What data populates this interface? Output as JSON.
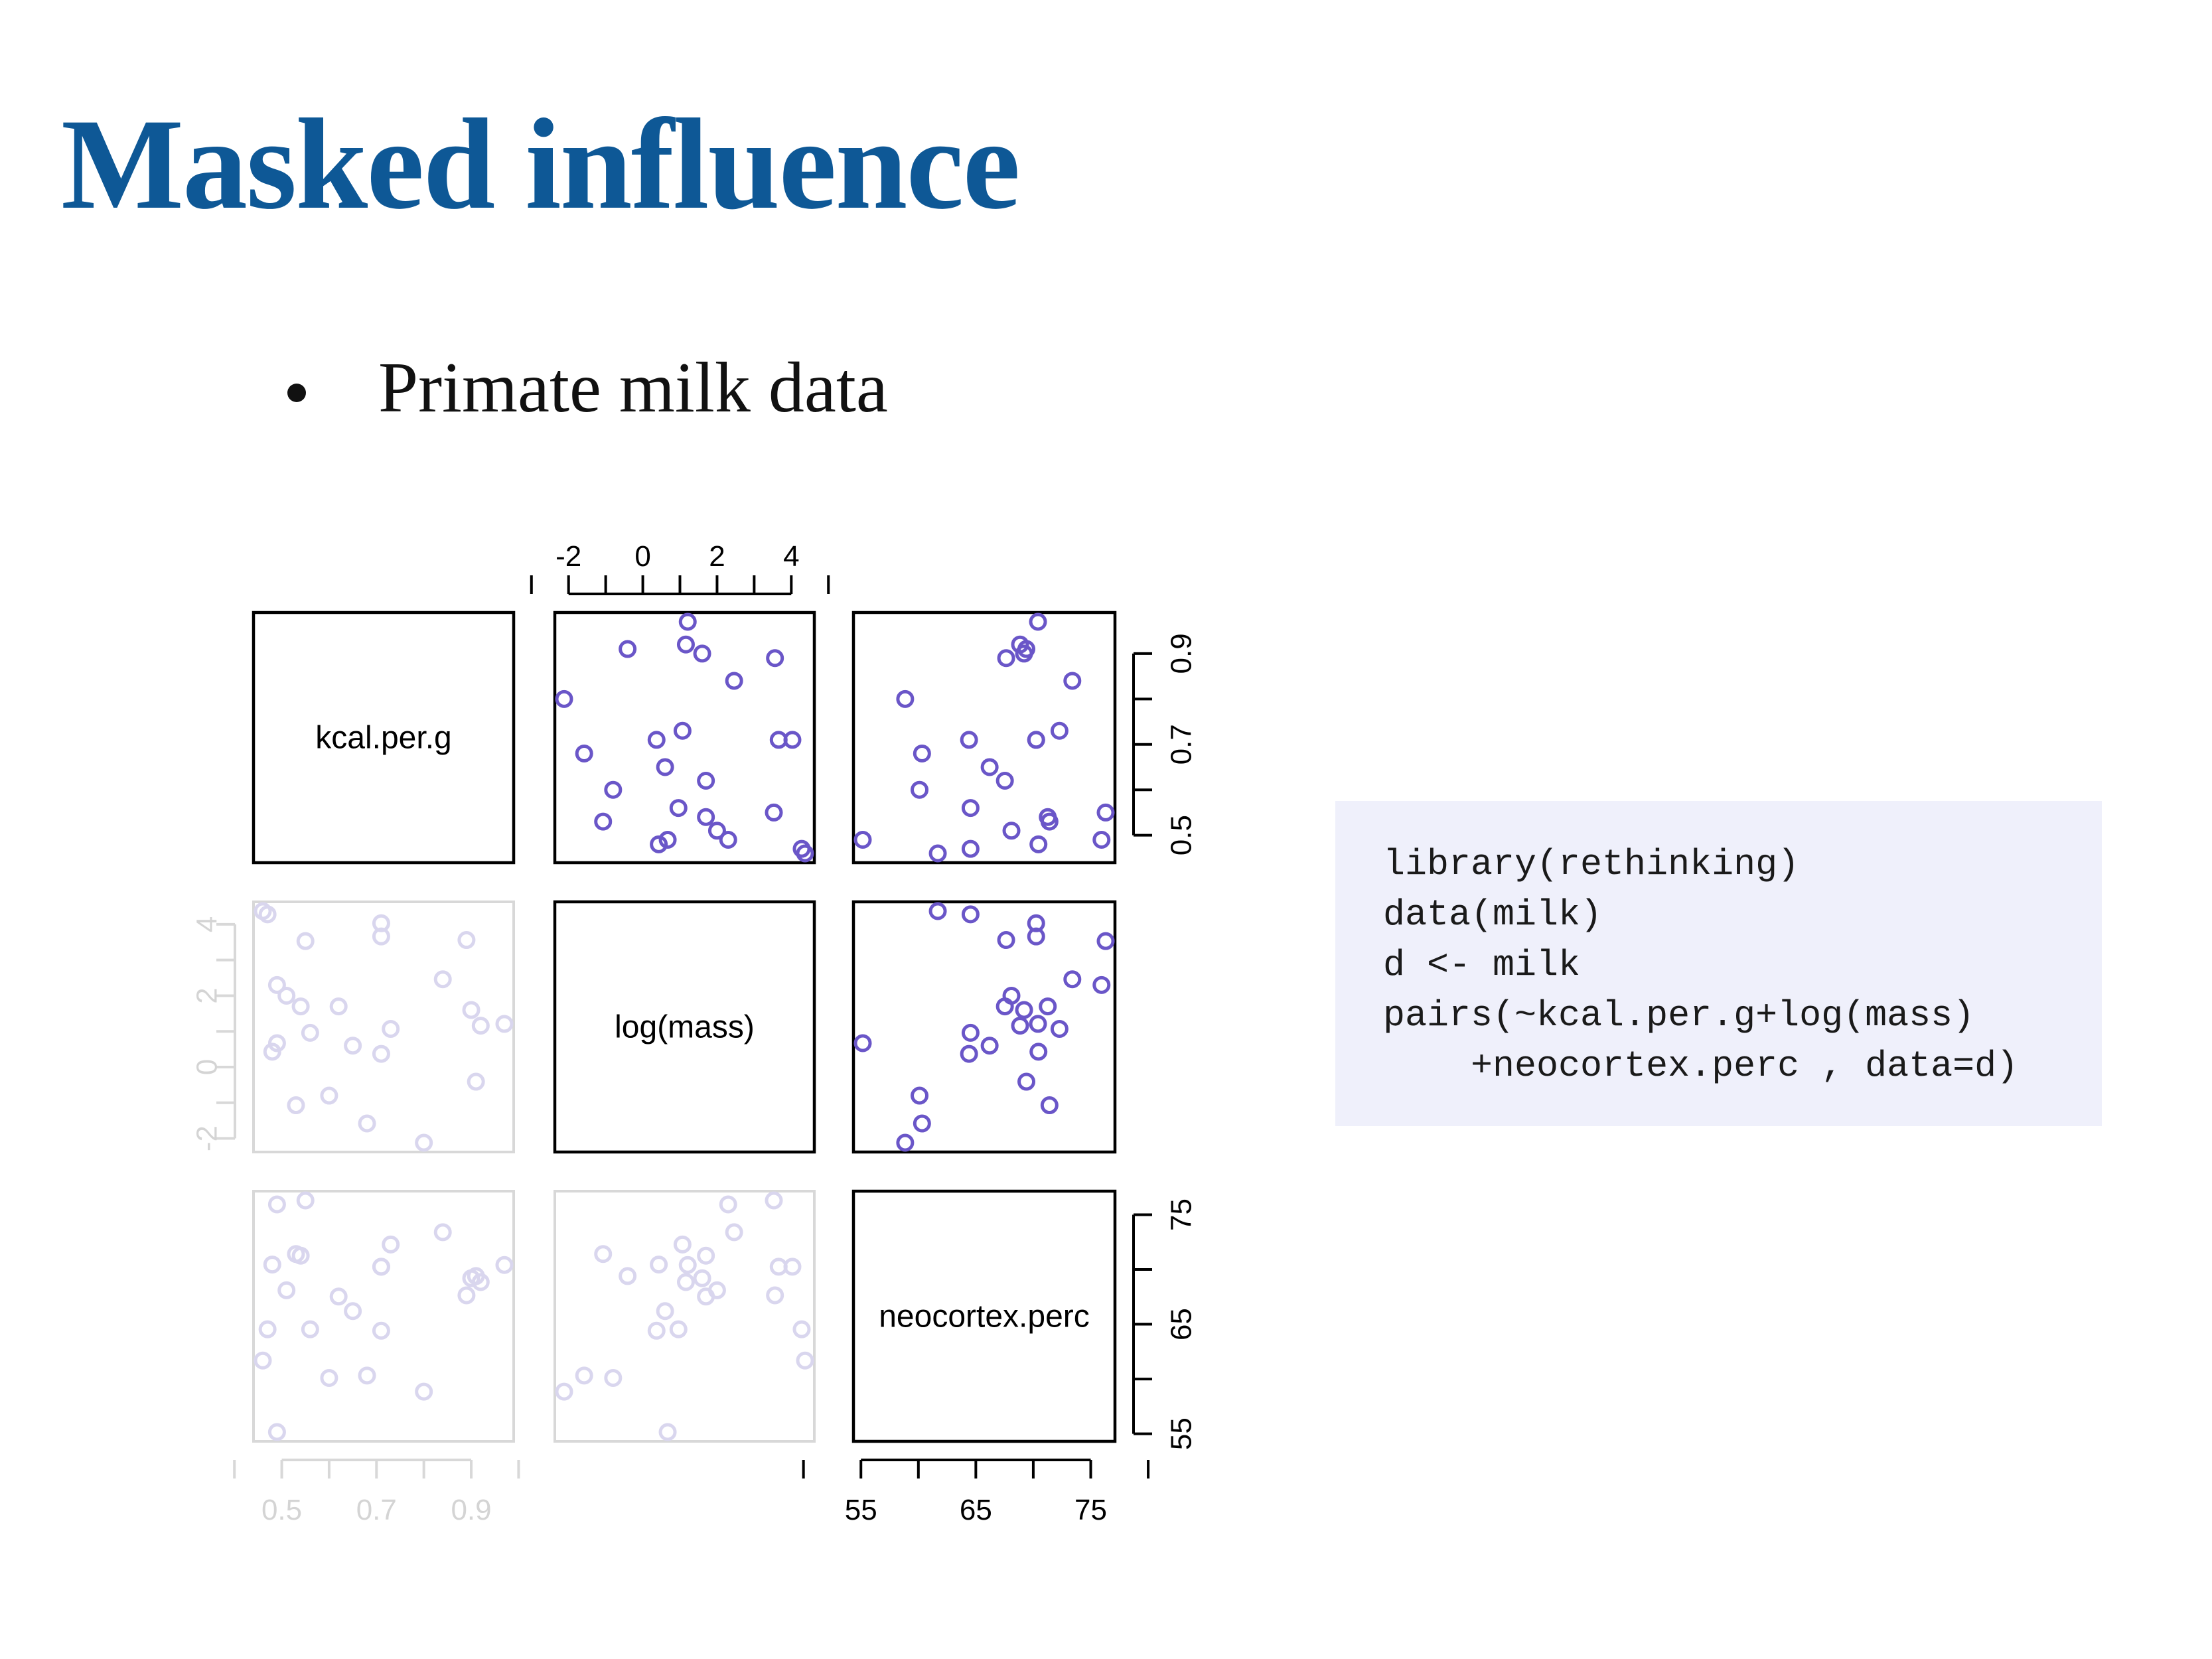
{
  "slide": {
    "title": "Masked influence",
    "bullet": "Primate milk data",
    "title_color": "#0e5896"
  },
  "code": {
    "lines": [
      "library(rethinking)",
      "data(milk)",
      "d <- milk",
      "pairs(~kcal.per.g+log(mass)",
      "    +neocortex.perc , data=d)"
    ],
    "background": "#eff0fb"
  },
  "chart_data": {
    "type": "scatter",
    "variables": [
      "kcal.per.g",
      "log(mass)",
      "neocortex.perc"
    ],
    "ranges": {
      "kcal.per.g": [
        0.46,
        0.97
      ],
      "log(mass)": [
        -2.12,
        4.37
      ],
      "neocortex.perc": [
        55.16,
        76.3
      ]
    },
    "ticks": {
      "kcal.per.g": [
        "0.5",
        "0.7",
        "0.9"
      ],
      "log(mass)": [
        "-2",
        "0",
        "2",
        "4"
      ],
      "neocortex.perc": [
        "55",
        "65",
        "75"
      ]
    },
    "point_color": "#6a56c8",
    "faded_color": "#d9d6ee",
    "points": [
      [
        0.49,
        0.67,
        55.16
      ],
      [
        0.47,
        4.28,
        64.54
      ],
      [
        0.56,
        0.96,
        64.54
      ],
      [
        0.89,
        3.56,
        67.64
      ],
      [
        0.92,
        1.16,
        68.85
      ],
      [
        0.8,
        -2.12,
        58.85
      ],
      [
        0.46,
        4.37,
        61.69
      ],
      [
        0.71,
        3.66,
        70.25
      ],
      [
        0.71,
        4.03,
        70.25
      ],
      [
        0.73,
        1.07,
        72.28
      ],
      [
        0.68,
        -1.58,
        60.32
      ],
      [
        0.97,
        1.21,
        70.41
      ],
      [
        0.84,
        2.46,
        73.4
      ],
      [
        0.62,
        1.7,
        67.53
      ],
      [
        0.54,
        1.7,
        71.26
      ],
      [
        0.49,
        2.3,
        75.94
      ],
      [
        0.48,
        0.43,
        70.45
      ],
      [
        0.55,
        3.53,
        76.3
      ],
      [
        0.71,
        0.37,
        64.41
      ],
      [
        0.53,
        -1.07,
        71.41
      ],
      [
        0.91,
        -0.41,
        69.4
      ],
      [
        0.6,
        -0.8,
        60.1
      ],
      [
        0.9,
        1.6,
        69.2
      ],
      [
        0.51,
        2.0,
        68.1
      ],
      [
        0.65,
        0.6,
        66.2
      ]
    ]
  }
}
